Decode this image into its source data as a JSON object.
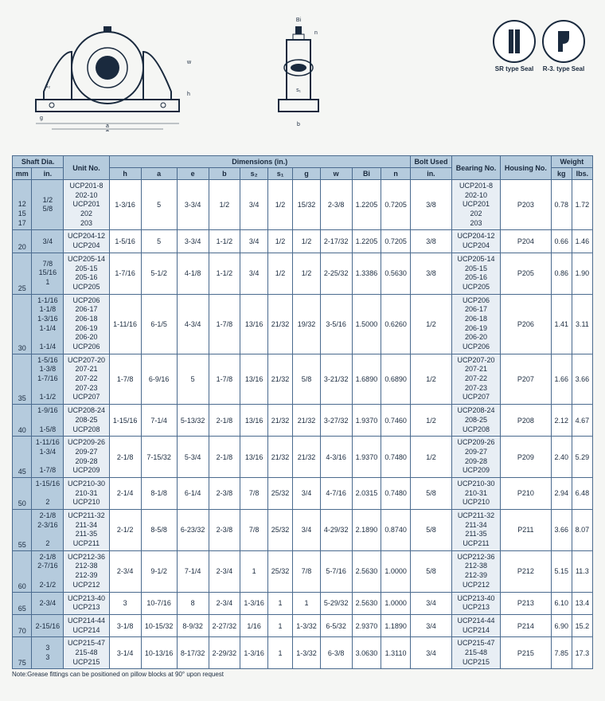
{
  "seals": [
    {
      "label": "SR type Seal"
    },
    {
      "label": "R-3. type Seal"
    }
  ],
  "headers": {
    "shaft_dia": "Shaft Dia.",
    "unit_no": "Unit No.",
    "dimensions": "Dimensions (in.)",
    "bolt_used": "Bolt Used",
    "bearing_no": "Bearing No.",
    "housing_no": "Housing No.",
    "weight": "Weight",
    "mm": "mm",
    "in": "in.",
    "h": "h",
    "a": "a",
    "e": "e",
    "b": "b",
    "s2": "s₂",
    "s1": "s₁",
    "g": "g",
    "w": "w",
    "bi": "Bi",
    "n": "n",
    "bolt_in": "in.",
    "kg": "kg",
    "lbs": "Ibs."
  },
  "rows": [
    {
      "mm": "12\n15\n17",
      "in": "1/2\n5/8",
      "unit": "UCP201-8\n202-10\nUCP201\n202\n203",
      "h": "1-3/16",
      "a": "5",
      "e": "3-3/4",
      "b": "1/2",
      "s2": "3/4",
      "s1": "1/2",
      "g": "15/32",
      "w": "2-3/8",
      "bi": "1.2205",
      "n": "0.7205",
      "bolt": "3/8",
      "bearing": "UCP201-8\n202-10\nUCP201\n202\n203",
      "housing": "P203",
      "kg": "0.78",
      "lbs": "1.72"
    },
    {
      "mm": "20",
      "in": "3/4",
      "unit": "UCP204-12\nUCP204",
      "h": "1-5/16",
      "a": "5",
      "e": "3-3/4",
      "b": "1-1/2",
      "s2": "3/4",
      "s1": "1/2",
      "g": "1/2",
      "w": "2-17/32",
      "bi": "1.2205",
      "n": "0.7205",
      "bolt": "3/8",
      "bearing": "UCP204-12\nUCP204",
      "housing": "P204",
      "kg": "0.66",
      "lbs": "1.46"
    },
    {
      "mm": "25",
      "in": "7/8\n15/16\n1",
      "unit": "UCP205-14\n205-15\n205-16\nUCP205",
      "h": "1-7/16",
      "a": "5-1/2",
      "e": "4-1/8",
      "b": "1-1/2",
      "s2": "3/4",
      "s1": "1/2",
      "g": "1/2",
      "w": "2-25/32",
      "bi": "1.3386",
      "n": "0.5630",
      "bolt": "3/8",
      "bearing": "UCP205-14\n205-15\n205-16\nUCP205",
      "housing": "P205",
      "kg": "0.86",
      "lbs": "1.90"
    },
    {
      "mm": "30",
      "in": "1-1/16\n1-1/8\n1-3/16\n1-1/4\n\n1-1/4",
      "unit": "UCP206\n206-17\n206-18\n206-19\n206-20\nUCP206",
      "h": "1-11/16",
      "a": "6-1/5",
      "e": "4-3/4",
      "b": "1-7/8",
      "s2": "13/16",
      "s1": "21/32",
      "g": "19/32",
      "w": "3-5/16",
      "bi": "1.5000",
      "n": "0.6260",
      "bolt": "1/2",
      "bearing": "UCP206\n206-17\n206-18\n206-19\n206-20\nUCP206",
      "housing": "P206",
      "kg": "1.41",
      "lbs": "3.11"
    },
    {
      "mm": "35",
      "in": "1-5/16\n1-3/8\n1-7/16\n\n1-1/2",
      "unit": "UCP207-20\n207-21\n207-22\n207-23\nUCP207",
      "h": "1-7/8",
      "a": "6-9/16",
      "e": "5",
      "b": "1-7/8",
      "s2": "13/16",
      "s1": "21/32",
      "g": "5/8",
      "w": "3-21/32",
      "bi": "1.6890",
      "n": "0.6890",
      "bolt": "1/2",
      "bearing": "UCP207-20\n207-21\n207-22\n207-23\nUCP207",
      "housing": "P207",
      "kg": "1.66",
      "lbs": "3.66"
    },
    {
      "mm": "40",
      "in": "1-9/16\n\n1-5/8",
      "unit": "UCP208-24\n208-25\nUCP208",
      "h": "1-15/16",
      "a": "7-1/4",
      "e": "5-13/32",
      "b": "2-1/8",
      "s2": "13/16",
      "s1": "21/32",
      "g": "21/32",
      "w": "3-27/32",
      "bi": "1.9370",
      "n": "0.7460",
      "bolt": "1/2",
      "bearing": "UCP208-24\n208-25\nUCP208",
      "housing": "P208",
      "kg": "2.12",
      "lbs": "4.67"
    },
    {
      "mm": "45",
      "in": "1-11/16\n1-3/4\n\n1-7/8",
      "unit": "UCP209-26\n209-27\n209-28\nUCP209",
      "h": "2-1/8",
      "a": "7-15/32",
      "e": "5-3/4",
      "b": "2-1/8",
      "s2": "13/16",
      "s1": "21/32",
      "g": "21/32",
      "w": "4-3/16",
      "bi": "1.9370",
      "n": "0.7480",
      "bolt": "1/2",
      "bearing": "UCP209-26\n209-27\n209-28\nUCP209",
      "housing": "P209",
      "kg": "2.40",
      "lbs": "5.29"
    },
    {
      "mm": "50",
      "in": "1-15/16\n\n2",
      "unit": "UCP210-30\n210-31\nUCP210",
      "h": "2-1/4",
      "a": "8-1/8",
      "e": "6-1/4",
      "b": "2-3/8",
      "s2": "7/8",
      "s1": "25/32",
      "g": "3/4",
      "w": "4-7/16",
      "bi": "2.0315",
      "n": "0.7480",
      "bolt": "5/8",
      "bearing": "UCP210-30\n210-31\nUCP210",
      "housing": "P210",
      "kg": "2.94",
      "lbs": "6.48"
    },
    {
      "mm": "55",
      "in": "2-1/8\n2-3/16\n\n2",
      "unit": "UCP211-32\n211-34\n211-35\nUCP211",
      "h": "2-1/2",
      "a": "8-5/8",
      "e": "6-23/32",
      "b": "2-3/8",
      "s2": "7/8",
      "s1": "25/32",
      "g": "3/4",
      "w": "4-29/32",
      "bi": "2.1890",
      "n": "0.8740",
      "bolt": "5/8",
      "bearing": "UCP211-32\n211-34\n211-35\nUCP211",
      "housing": "P211",
      "kg": "3.66",
      "lbs": "8.07"
    },
    {
      "mm": "60",
      "in": "2-1/8\n2-7/16\n\n2-1/2",
      "unit": "UCP212-36\n212-38\n212-39\nUCP212",
      "h": "2-3/4",
      "a": "9-1/2",
      "e": "7-1/4",
      "b": "2-3/4",
      "s2": "1",
      "s1": "25/32",
      "g": "7/8",
      "w": "5-7/16",
      "bi": "2.5630",
      "n": "1.0000",
      "bolt": "5/8",
      "bearing": "UCP212-36\n212-38\n212-39\nUCP212",
      "housing": "P212",
      "kg": "5.15",
      "lbs": "11.3"
    },
    {
      "mm": "65",
      "in": "2-3/4",
      "unit": "UCP213-40\nUCP213",
      "h": "3",
      "a": "10-7/16",
      "e": "8",
      "b": "2-3/4",
      "s2": "1-3/16",
      "s1": "1",
      "g": "1",
      "w": "5-29/32",
      "bi": "2.5630",
      "n": "1.0000",
      "bolt": "3/4",
      "bearing": "UCP213-40\nUCP213",
      "housing": "P213",
      "kg": "6.10",
      "lbs": "13.4"
    },
    {
      "mm": "70",
      "in": "2-15/16",
      "unit": "UCP214-44\nUCP214",
      "h": "3-1/8",
      "a": "10-15/32",
      "e": "8-9/32",
      "b": "2-27/32",
      "s2": "1/16",
      "s1": "1",
      "g": "1-3/32",
      "w": "6-5/32",
      "bi": "2.9370",
      "n": "1.1890",
      "bolt": "3/4",
      "bearing": "UCP214-44\nUCP214",
      "housing": "P214",
      "kg": "6.90",
      "lbs": "15.2"
    },
    {
      "mm": "75",
      "in": "3\n3",
      "unit": "UCP215-47\n215-48\nUCP215",
      "h": "3-1/4",
      "a": "10-13/16",
      "e": "8-17/32",
      "b": "2-29/32",
      "s2": "1-3/16",
      "s1": "1",
      "g": "1-3/32",
      "w": "6-3/8",
      "bi": "3.0630",
      "n": "1.3110",
      "bolt": "3/4",
      "bearing": "UCP215-47\n215-48\nUCP215",
      "housing": "P215",
      "kg": "7.85",
      "lbs": "17.3"
    }
  ],
  "note": "Note:Grease fittings can be positioned on pillow blocks at 90° upon request",
  "colors": {
    "header_bg": "#b5cbdd",
    "body_bg": "#f5f6f4",
    "border": "#4a6a8e",
    "text": "#1a2a3e",
    "alt_bg": "#e8eef4"
  }
}
